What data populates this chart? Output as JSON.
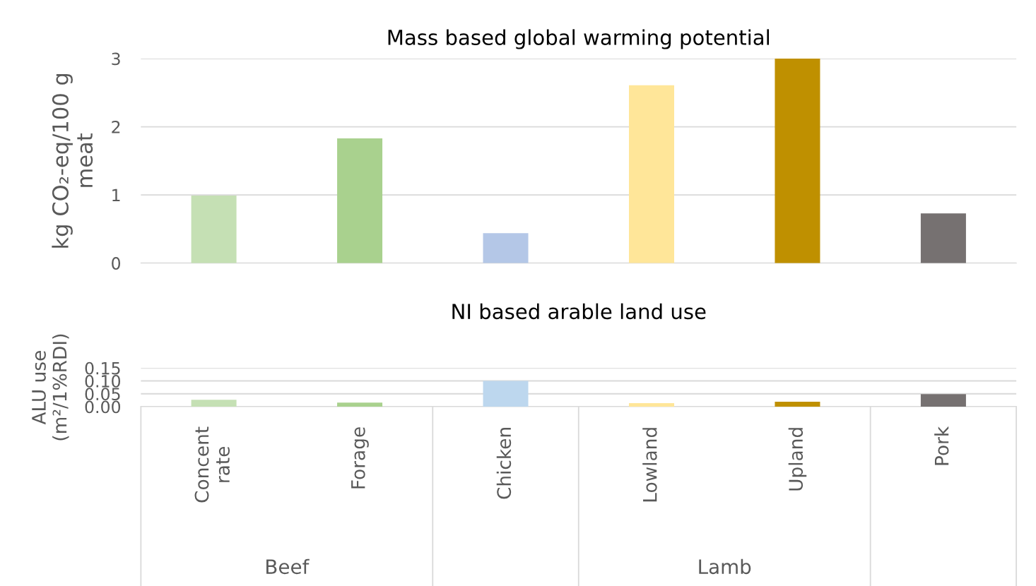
{
  "chart_data": [
    {
      "type": "bar",
      "title": "Mass based global warming potential",
      "ylabel": "kg CO₂-eq/100 g meat",
      "categories": [
        null,
        null,
        null,
        null,
        null,
        null
      ],
      "values": [
        0.99,
        1.83,
        0.44,
        2.61,
        3.0,
        0.73
      ],
      "colors": [
        "#c5e0b4",
        "#a9d18e",
        "#b4c7e7",
        "#ffe699",
        "#bf9000",
        "#767171"
      ],
      "ylim": [
        0,
        3
      ],
      "yticks": [
        0,
        1,
        2,
        3
      ],
      "grid": "y",
      "tick_labels": "y"
    },
    {
      "type": "bar",
      "title": "NI based arable land use",
      "ylabel": "ALU use (m²/1%RDI)",
      "categories": [
        "Concentrate",
        "Forage",
        "Chicken",
        "Lowland",
        "Upland",
        "Pork"
      ],
      "values": [
        0.027,
        0.016,
        0.1,
        0.014,
        0.019,
        0.049
      ],
      "colors": [
        "#c5e0b4",
        "#a9d18e",
        "#bdd7ee",
        "#ffe699",
        "#bf9000",
        "#767171"
      ],
      "ylim": [
        0,
        0.15
      ],
      "yticks": [
        {
          "value": 0,
          "label": "0.00"
        },
        {
          "value": 0.05,
          "label": "0.05"
        },
        {
          "value": 0.1,
          "label": "0.10"
        },
        {
          "value": 0.15,
          "label": "0.15"
        }
      ],
      "grid": "y",
      "annotations": [
        "Beef",
        "Lamb"
      ]
    }
  ]
}
